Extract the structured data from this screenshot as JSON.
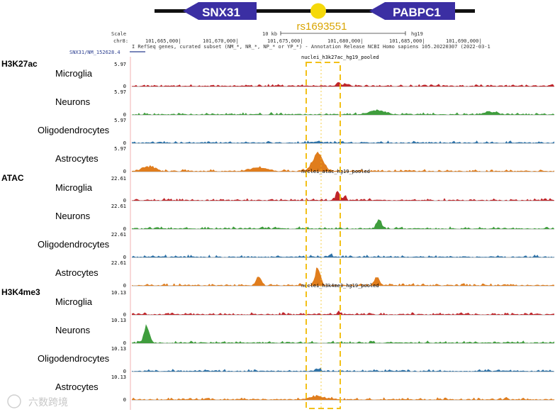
{
  "gene_banner": {
    "left_gene": "SNX31",
    "right_gene": "PABPC1",
    "snp_label": "rs1693551",
    "arrow_color": "#3b2fa3",
    "snp_color": "#f5d90a",
    "snp_label_color": "#d9a400"
  },
  "ruler": {
    "scale_label": "Scale",
    "scale_value": "10 kb",
    "assembly": "hg19",
    "chrom_label": "chr8:",
    "positions": [
      "101,665,000|",
      "101,670,000|",
      "101,675,000|",
      "101,680,000|",
      "101,685,000|",
      "101,690,000|"
    ],
    "annotation_note": "I RefSeq genes, curated subset (NM_*, NR_*, NP_* or YP_*) - Annotation Release NCBI Homo sapiens 105.20220307 (2022-03-1",
    "transcript_label": "SNX31/NM_152628.4"
  },
  "groups": [
    {
      "label": "H3K27ac",
      "track_title": "nuclei_h3k27ac_hg19_pooled",
      "max_value": "5.97",
      "tracks": [
        {
          "cell": "Microglia",
          "max": "5.97",
          "color": "#c0262b",
          "peaks": [
            {
              "pos": 0.49,
              "h": 0.15,
              "w": 0.012
            },
            {
              "pos": 0.51,
              "h": 0.12,
              "w": 0.008
            }
          ]
        },
        {
          "cell": "Neurons",
          "max": "5.97",
          "color": "#3f9d3d",
          "peaks": [
            {
              "pos": 0.58,
              "h": 0.22,
              "w": 0.035
            },
            {
              "pos": 0.85,
              "h": 0.14,
              "w": 0.03
            }
          ]
        },
        {
          "cell": "Oligodendrocytes",
          "max": "5.97",
          "color": "#2f73a8",
          "peaks": [
            {
              "pos": 0.44,
              "h": 0.08,
              "w": 0.02
            }
          ]
        },
        {
          "cell": "Astrocytes",
          "max": "0",
          "color": "#e07d1d",
          "peaks": [
            {
              "pos": 0.44,
              "h": 0.85,
              "w": 0.025
            },
            {
              "pos": 0.3,
              "h": 0.2,
              "w": 0.04
            },
            {
              "pos": 0.04,
              "h": 0.25,
              "w": 0.03
            }
          ]
        }
      ]
    },
    {
      "label": "ATAC",
      "track_title": "nuclei_atac_hg19_pooled",
      "max_value": "22.61",
      "tracks": [
        {
          "cell": "Microglia",
          "max": "22.61",
          "color": "#c0262b",
          "peaks": [
            {
              "pos": 0.488,
              "h": 0.4,
              "w": 0.01
            },
            {
              "pos": 0.505,
              "h": 0.2,
              "w": 0.006
            }
          ]
        },
        {
          "cell": "Neurons",
          "max": "22.61",
          "color": "#3f9d3d",
          "peaks": [
            {
              "pos": 0.585,
              "h": 0.45,
              "w": 0.012
            }
          ]
        },
        {
          "cell": "Oligodendrocytes",
          "max": "22.61",
          "color": "#2f73a8",
          "peaks": [
            {
              "pos": 0.47,
              "h": 0.1,
              "w": 0.01
            }
          ]
        },
        {
          "cell": "Astrocytes",
          "max": "0",
          "color": "#e07d1d",
          "peaks": [
            {
              "pos": 0.44,
              "h": 0.9,
              "w": 0.012
            },
            {
              "pos": 0.3,
              "h": 0.45,
              "w": 0.012
            },
            {
              "pos": 0.58,
              "h": 0.4,
              "w": 0.012
            }
          ]
        }
      ]
    },
    {
      "label": "H3K4me3",
      "track_title": "nuclei_h3k4me3_hg19_pooled",
      "max_value": "10.13",
      "tracks": [
        {
          "cell": "Microglia",
          "max": "10.13",
          "color": "#c0262b",
          "peaks": [
            {
              "pos": 0.49,
              "h": 0.2,
              "w": 0.006
            }
          ]
        },
        {
          "cell": "Neurons",
          "max": "10.13",
          "color": "#3f9d3d",
          "peaks": [
            {
              "pos": 0.035,
              "h": 0.9,
              "w": 0.012
            }
          ]
        },
        {
          "cell": "Oligodendrocytes",
          "max": "10.13",
          "color": "#2f73a8",
          "peaks": [
            {
              "pos": 0.44,
              "h": 0.1,
              "w": 0.012
            }
          ]
        },
        {
          "cell": "Astrocytes",
          "max": "0",
          "color": "#e07d1d",
          "peaks": [
            {
              "pos": 0.44,
              "h": 0.15,
              "w": 0.04
            }
          ]
        }
      ]
    }
  ],
  "zero_label": "0",
  "highlight_color": "#f2c018",
  "watermark": "六数跨境"
}
